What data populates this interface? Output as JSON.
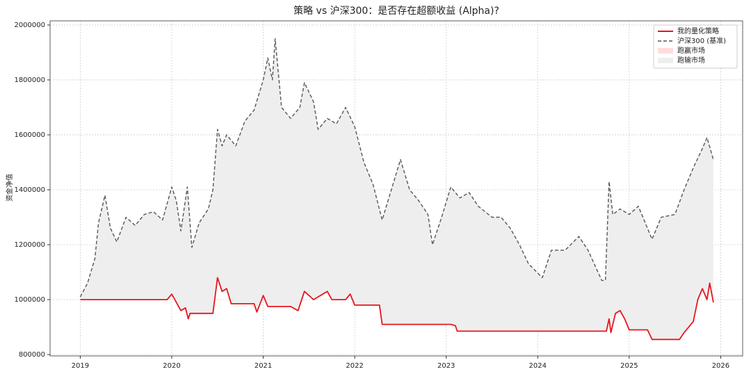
{
  "chart_data": {
    "type": "line",
    "title": "策略 vs 沪深300：是否存在超额收益 (Alpha)?",
    "ylabel": "资金净值",
    "xlim": [
      2018.67,
      2026.24
    ],
    "xticks": [
      2019,
      2020,
      2021,
      2022,
      2023,
      2024,
      2025,
      2026
    ],
    "ylim": [
      795000,
      2015000
    ],
    "yticks": [
      800000,
      1000000,
      1200000,
      1400000,
      1600000,
      1800000,
      2000000
    ],
    "grid": true,
    "legend": "upper right",
    "series": [
      {
        "name": "我的量化策略",
        "color": "#e8141c",
        "dash": "solid",
        "x": [
          2019.0,
          2019.95,
          2020.0,
          2020.05,
          2020.1,
          2020.15,
          2020.18,
          2020.2,
          2020.45,
          2020.5,
          2020.55,
          2020.6,
          2020.65,
          2020.9,
          2020.93,
          2021.0,
          2021.05,
          2021.3,
          2021.38,
          2021.45,
          2021.55,
          2021.7,
          2021.75,
          2021.9,
          2021.95,
          2022.0,
          2022.27,
          2022.3,
          2023.05,
          2023.1,
          2023.12,
          2024.75,
          2024.78,
          2024.8,
          2024.85,
          2024.9,
          2024.95,
          2025.0,
          2025.2,
          2025.25,
          2025.55,
          2025.6,
          2025.7,
          2025.75,
          2025.8,
          2025.85,
          2025.88,
          2025.92
        ],
        "values": [
          1000000,
          1000000,
          1020000,
          990000,
          960000,
          970000,
          930000,
          950000,
          950000,
          1080000,
          1030000,
          1040000,
          985000,
          985000,
          955000,
          1015000,
          975000,
          975000,
          960000,
          1030000,
          1000000,
          1030000,
          1000000,
          1000000,
          1020000,
          980000,
          980000,
          910000,
          910000,
          905000,
          885000,
          885000,
          930000,
          880000,
          950000,
          960000,
          930000,
          890000,
          890000,
          855000,
          855000,
          880000,
          920000,
          1000000,
          1040000,
          1000000,
          1060000,
          990000
        ]
      },
      {
        "name": "沪深300 (基准)",
        "color": "#555555",
        "dash": "dashed",
        "x": [
          2019.0,
          2019.08,
          2019.16,
          2019.2,
          2019.27,
          2019.33,
          2019.4,
          2019.5,
          2019.6,
          2019.7,
          2019.8,
          2019.9,
          2020.0,
          2020.05,
          2020.1,
          2020.17,
          2020.22,
          2020.3,
          2020.4,
          2020.45,
          2020.5,
          2020.55,
          2020.6,
          2020.7,
          2020.8,
          2020.9,
          2021.0,
          2021.05,
          2021.1,
          2021.13,
          2021.2,
          2021.3,
          2021.4,
          2021.45,
          2021.55,
          2021.6,
          2021.7,
          2021.8,
          2021.9,
          2022.0,
          2022.1,
          2022.2,
          2022.3,
          2022.4,
          2022.5,
          2022.6,
          2022.7,
          2022.8,
          2022.85,
          2022.95,
          2023.05,
          2023.15,
          2023.25,
          2023.35,
          2023.5,
          2023.6,
          2023.7,
          2023.8,
          2023.9,
          2024.05,
          2024.15,
          2024.3,
          2024.45,
          2024.55,
          2024.7,
          2024.74,
          2024.78,
          2024.82,
          2024.9,
          2025.0,
          2025.1,
          2025.25,
          2025.35,
          2025.5,
          2025.6,
          2025.7,
          2025.8,
          2025.85,
          2025.92
        ],
        "values": [
          1010000,
          1060000,
          1150000,
          1280000,
          1380000,
          1260000,
          1210000,
          1300000,
          1270000,
          1310000,
          1320000,
          1290000,
          1410000,
          1360000,
          1250000,
          1410000,
          1190000,
          1280000,
          1330000,
          1400000,
          1620000,
          1560000,
          1600000,
          1560000,
          1650000,
          1690000,
          1800000,
          1880000,
          1800000,
          1950000,
          1700000,
          1660000,
          1700000,
          1790000,
          1720000,
          1620000,
          1660000,
          1640000,
          1700000,
          1630000,
          1500000,
          1420000,
          1290000,
          1400000,
          1510000,
          1400000,
          1360000,
          1310000,
          1200000,
          1300000,
          1410000,
          1370000,
          1390000,
          1340000,
          1300000,
          1300000,
          1260000,
          1200000,
          1130000,
          1080000,
          1180000,
          1180000,
          1230000,
          1180000,
          1070000,
          1070000,
          1430000,
          1310000,
          1330000,
          1310000,
          1340000,
          1220000,
          1300000,
          1310000,
          1400000,
          1480000,
          1550000,
          1590000,
          1510000
        ]
      }
    ],
    "fills": [
      {
        "name": "跑赢市场",
        "color": "#ffdddd"
      },
      {
        "name": "跑输市场",
        "color": "#eeeeee"
      }
    ]
  }
}
